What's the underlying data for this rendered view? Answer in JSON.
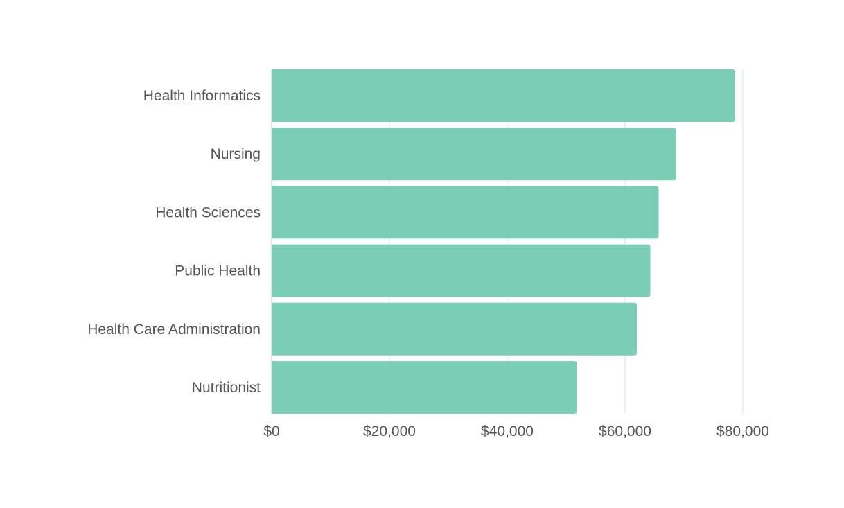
{
  "chart_data": {
    "type": "bar",
    "orientation": "horizontal",
    "title": "",
    "xlabel": "",
    "ylabel": "",
    "categories": [
      "Health Informatics",
      "Nursing",
      "Health Sciences",
      "Public Health",
      "Health Care Administration",
      "Nutritionist"
    ],
    "values": [
      78700,
      68700,
      65700,
      64300,
      62000,
      51800
    ],
    "xlim": [
      0,
      80000
    ],
    "x_ticks": [
      0,
      20000,
      40000,
      60000,
      80000
    ],
    "x_tick_labels": [
      "$0",
      "$20,000",
      "$40,000",
      "$60,000",
      "$80,000"
    ],
    "grid": true,
    "legend": "none",
    "bar_color": "#7bcdb5"
  }
}
